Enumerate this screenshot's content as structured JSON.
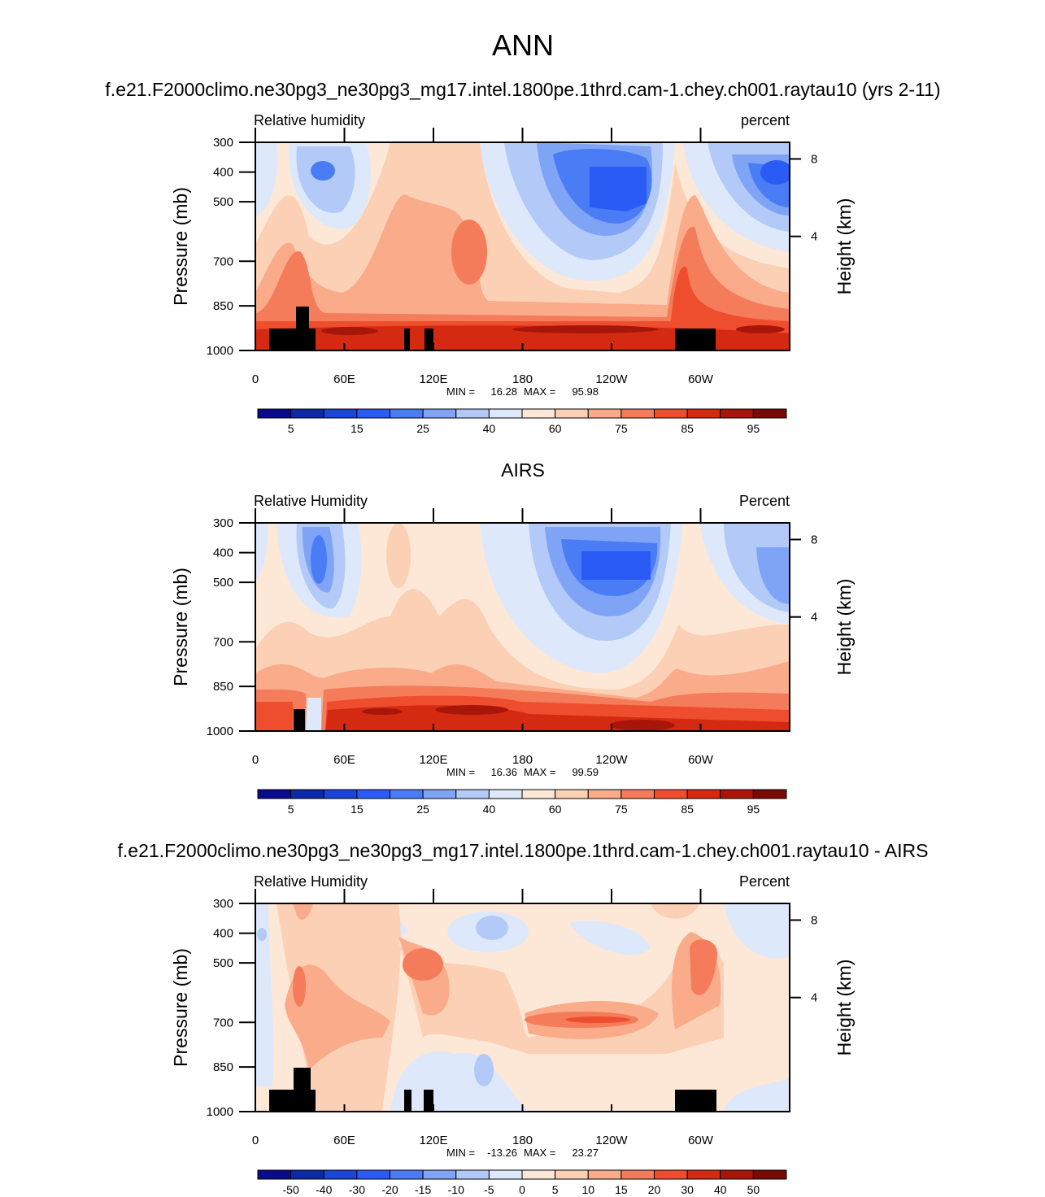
{
  "title": "ANN",
  "chart_data": [
    {
      "type": "contour",
      "title": "f.e21.F2000climo.ne30pg3_ne30pg3_mg17.intel.1800pe.1thrd.cam-1.chey.ch001.raytau10 (yrs 2-11)",
      "left_label": "Relative humidity",
      "right_label": "percent",
      "ylabel": "Pressure (mb)",
      "y2label": "Height (km)",
      "xlim": [
        0,
        360
      ],
      "xticks": [
        0,
        {
          "value": 60,
          "label": "60E"
        },
        {
          "value": 120,
          "label": "120E"
        },
        180,
        {
          "value": 240,
          "label": "120W"
        },
        {
          "value": 300,
          "label": "60W"
        }
      ],
      "ylim": [
        1000,
        300
      ],
      "yticks": [
        300,
        400,
        500,
        700,
        850,
        1000
      ],
      "y2scale": "standard-atmosphere",
      "y2ticks": [
        8,
        4
      ],
      "min_label": "MIN =",
      "min": 16.28,
      "max_label": "MAX =",
      "max": 95.98,
      "colorbar": {
        "levels": [
          5,
          null,
          15,
          null,
          25,
          null,
          40,
          null,
          60,
          null,
          75,
          null,
          85,
          null,
          95
        ],
        "colors": [
          "#0a0a8c",
          "#0d2aa6",
          "#1a45d6",
          "#2a5cf5",
          "#4a7cf5",
          "#7fa4f6",
          "#b3c9f7",
          "#dde8fa",
          "#fde8d8",
          "#fcd0b5",
          "#f9ab8a",
          "#f57c5a",
          "#ef4e2e",
          "#d52a12",
          "#a8160a",
          "#7a0a04"
        ]
      }
    },
    {
      "type": "contour",
      "title": "AIRS",
      "left_label": "Relative Humidity",
      "right_label": "Percent",
      "ylabel": "Pressure (mb)",
      "y2label": "Height (km)",
      "xlim": [
        0,
        360
      ],
      "xticks": [
        0,
        {
          "value": 60,
          "label": "60E"
        },
        {
          "value": 120,
          "label": "120E"
        },
        180,
        {
          "value": 240,
          "label": "120W"
        },
        {
          "value": 300,
          "label": "60W"
        }
      ],
      "ylim": [
        1000,
        300
      ],
      "yticks": [
        300,
        400,
        500,
        700,
        850,
        1000
      ],
      "y2scale": "standard-atmosphere",
      "y2ticks": [
        8,
        4
      ],
      "min_label": "MIN =",
      "min": 16.36,
      "max_label": "MAX =",
      "max": 99.59,
      "colorbar": {
        "levels": [
          5,
          null,
          15,
          null,
          25,
          null,
          40,
          null,
          60,
          null,
          75,
          null,
          85,
          null,
          95
        ],
        "colors": [
          "#0a0a8c",
          "#0d2aa6",
          "#1a45d6",
          "#2a5cf5",
          "#4a7cf5",
          "#7fa4f6",
          "#b3c9f7",
          "#dde8fa",
          "#fde8d8",
          "#fcd0b5",
          "#f9ab8a",
          "#f57c5a",
          "#ef4e2e",
          "#d52a12",
          "#a8160a",
          "#7a0a04"
        ]
      }
    },
    {
      "type": "contour",
      "title": "f.e21.F2000climo.ne30pg3_ne30pg3_mg17.intel.1800pe.1thrd.cam-1.chey.ch001.raytau10 - AIRS",
      "left_label": "Relative Humidity",
      "right_label": "Percent",
      "ylabel": "Pressure (mb)",
      "y2label": "Height (km)",
      "xlim": [
        0,
        360
      ],
      "xticks": [
        0,
        {
          "value": 60,
          "label": "60E"
        },
        {
          "value": 120,
          "label": "120E"
        },
        180,
        {
          "value": 240,
          "label": "120W"
        },
        {
          "value": 300,
          "label": "60W"
        }
      ],
      "ylim": [
        1000,
        300
      ],
      "yticks": [
        300,
        400,
        500,
        700,
        850,
        1000
      ],
      "y2scale": "standard-atmosphere",
      "y2ticks": [
        8,
        4
      ],
      "min_label": "MIN =",
      "min": -13.26,
      "max_label": "MAX =",
      "max": 23.27,
      "colorbar": {
        "levels": [
          -50,
          -40,
          -30,
          -20,
          -15,
          -10,
          -5,
          0,
          5,
          10,
          15,
          20,
          30,
          40,
          50
        ],
        "colors": [
          "#0a0a8c",
          "#0d2aa6",
          "#1a45d6",
          "#2a5cf5",
          "#4a7cf5",
          "#7fa4f6",
          "#b3c9f7",
          "#dde8fa",
          "#fde8d8",
          "#fcd0b5",
          "#f9ab8a",
          "#f57c5a",
          "#ef4e2e",
          "#d52a12",
          "#a8160a",
          "#7a0a04"
        ]
      }
    }
  ]
}
